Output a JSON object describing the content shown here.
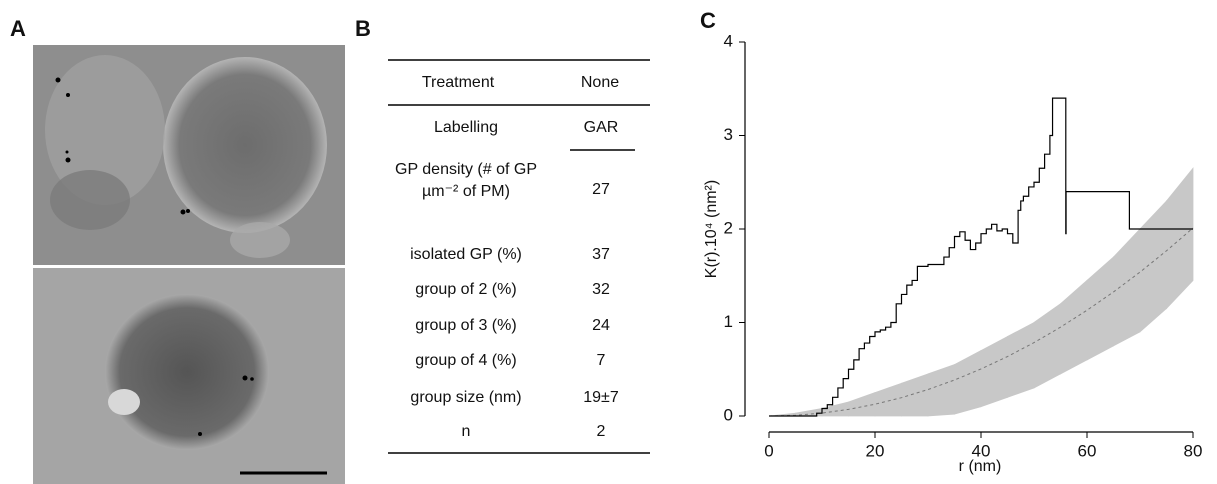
{
  "panels": {
    "A": "A",
    "B": "B",
    "C": "C"
  },
  "table": {
    "header": [
      "Treatment",
      "None"
    ],
    "rows": [
      [
        "Labelling",
        "GAR"
      ],
      [
        "GP density (# of GP µm⁻² of PM)",
        "27"
      ],
      [
        "isolated GP (%)",
        "37"
      ],
      [
        "group of 2 (%)",
        "32"
      ],
      [
        "group of 3 (%)",
        "24"
      ],
      [
        "group of 4 (%)",
        "7"
      ],
      [
        "group size (nm)",
        "19±7"
      ],
      [
        "n",
        "2"
      ]
    ]
  },
  "chart_data": {
    "type": "step",
    "xlabel": "r (nm)",
    "ylabel": "K(r).10⁴ (nm²)",
    "xlim": [
      0,
      80
    ],
    "xticks": [
      0,
      20,
      40,
      60,
      80
    ],
    "ylim": [
      0,
      4
    ],
    "yticks": [
      0,
      1,
      2,
      3,
      4
    ],
    "observed": {
      "color": "#000000",
      "x": [
        0,
        9,
        10,
        11,
        12,
        13,
        14,
        15,
        16,
        17,
        18,
        19,
        20,
        21,
        22,
        23,
        24,
        25,
        26,
        27,
        28,
        30,
        33,
        34,
        35,
        36,
        37,
        38,
        39,
        40,
        41,
        42,
        43,
        44,
        45,
        46,
        47,
        47.5,
        48,
        49,
        50,
        51,
        52,
        53,
        53.5,
        56,
        56.05,
        68,
        80
      ],
      "values": [
        0,
        0.03,
        0.08,
        0.12,
        0.2,
        0.3,
        0.4,
        0.5,
        0.6,
        0.72,
        0.78,
        0.85,
        0.9,
        0.92,
        0.95,
        1.0,
        1.2,
        1.3,
        1.4,
        1.45,
        1.6,
        1.62,
        1.7,
        1.8,
        1.92,
        1.97,
        1.88,
        1.78,
        1.85,
        1.95,
        2.0,
        2.05,
        1.98,
        2.0,
        1.95,
        1.85,
        2.2,
        2.3,
        2.35,
        2.45,
        2.5,
        2.65,
        2.8,
        3.0,
        3.4,
        1.95,
        2.4,
        2.0,
        2.0
      ]
    },
    "envelope": {
      "color": "#c8c8c8",
      "x": [
        0,
        5,
        10,
        15,
        20,
        25,
        30,
        35,
        40,
        45,
        50,
        55,
        60,
        65,
        70,
        75,
        80
      ],
      "upper": [
        0,
        0.03,
        0.08,
        0.15,
        0.25,
        0.35,
        0.45,
        0.55,
        0.7,
        0.85,
        1.0,
        1.2,
        1.45,
        1.7,
        2.0,
        2.3,
        2.65
      ],
      "lower": [
        0,
        0,
        0,
        0,
        0,
        0,
        0,
        0.02,
        0.1,
        0.2,
        0.3,
        0.45,
        0.6,
        0.75,
        0.9,
        1.15,
        1.45
      ]
    },
    "expected": {
      "color": "#777777",
      "x": [
        0,
        5,
        10,
        15,
        20,
        25,
        30,
        35,
        40,
        45,
        50,
        55,
        60,
        65,
        70,
        75,
        80
      ],
      "values": [
        0,
        0.008,
        0.031,
        0.071,
        0.126,
        0.196,
        0.283,
        0.385,
        0.503,
        0.636,
        0.785,
        0.95,
        1.131,
        1.327,
        1.539,
        1.767,
        2.011
      ]
    }
  }
}
